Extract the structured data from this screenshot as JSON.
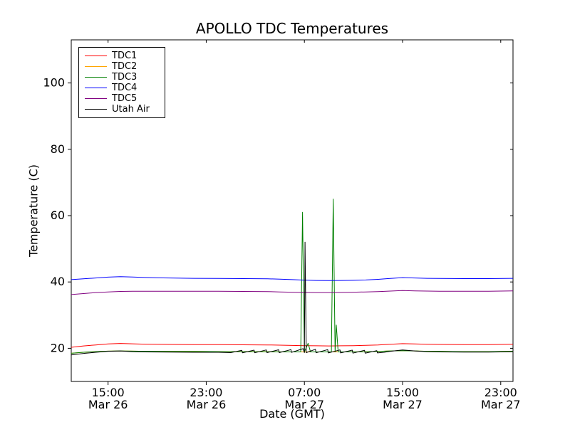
{
  "chart_data": {
    "type": "line",
    "title": "APOLLO TDC Temperatures",
    "xlabel": "Date (GMT)",
    "ylabel": "Temperature (C)",
    "x_unit": "hours since Mar 26 12:00 GMT",
    "xlim": [
      0,
      36
    ],
    "ylim": [
      10,
      113
    ],
    "yticks": [
      20,
      40,
      60,
      80,
      100
    ],
    "xticks": [
      {
        "x": 3,
        "time": "15:00",
        "date": "Mar 26"
      },
      {
        "x": 11,
        "time": "23:00",
        "date": "Mar 26"
      },
      {
        "x": 19,
        "time": "07:00",
        "date": "Mar 27"
      },
      {
        "x": 27,
        "time": "15:00",
        "date": "Mar 27"
      },
      {
        "x": 35,
        "time": "23:00",
        "date": "Mar 27"
      }
    ],
    "grid": false,
    "legend_position": "upper left",
    "axis_color": "#000000",
    "background_color": "#ffffff",
    "series": [
      {
        "name": "TDC1",
        "color": "#ff0000",
        "points": [
          [
            0,
            20.3
          ],
          [
            1,
            20.7
          ],
          [
            2,
            21.0
          ],
          [
            3,
            21.3
          ],
          [
            4,
            21.45
          ],
          [
            5,
            21.35
          ],
          [
            6,
            21.25
          ],
          [
            8,
            21.15
          ],
          [
            10,
            21.1
          ],
          [
            12,
            21.1
          ],
          [
            14,
            21.05
          ],
          [
            16,
            21.0
          ],
          [
            17,
            20.95
          ],
          [
            18,
            20.85
          ],
          [
            19,
            20.8
          ],
          [
            20,
            20.75
          ],
          [
            21,
            20.7
          ],
          [
            22,
            20.75
          ],
          [
            23,
            20.8
          ],
          [
            24,
            20.9
          ],
          [
            25,
            21.0
          ],
          [
            26,
            21.2
          ],
          [
            27,
            21.4
          ],
          [
            28,
            21.3
          ],
          [
            29,
            21.2
          ],
          [
            30,
            21.15
          ],
          [
            32,
            21.1
          ],
          [
            34,
            21.1
          ],
          [
            36,
            21.2
          ]
        ]
      },
      {
        "name": "TDC2",
        "color": "#ffa500",
        "points": [
          [
            0,
            18.5
          ],
          [
            1,
            18.8
          ],
          [
            2,
            19.0
          ],
          [
            3,
            19.15
          ],
          [
            4,
            19.2
          ],
          [
            5,
            19.15
          ],
          [
            6,
            19.1
          ],
          [
            8,
            19.05
          ],
          [
            10,
            19.05
          ],
          [
            12,
            19.0
          ],
          [
            14,
            19.0
          ],
          [
            16,
            18.95
          ],
          [
            18,
            18.9
          ],
          [
            20,
            18.9
          ],
          [
            22,
            18.9
          ],
          [
            24,
            18.95
          ],
          [
            25,
            19.05
          ],
          [
            26,
            19.2
          ],
          [
            27,
            19.3
          ],
          [
            28,
            19.2
          ],
          [
            29,
            19.1
          ],
          [
            30,
            19.05
          ],
          [
            32,
            19.0
          ],
          [
            34,
            19.0
          ],
          [
            36,
            19.1
          ]
        ]
      },
      {
        "name": "TDC3",
        "color": "#008000",
        "points": [
          [
            0,
            18.5
          ],
          [
            1,
            18.8
          ],
          [
            2,
            19.0
          ],
          [
            3,
            19.15
          ],
          [
            4,
            19.2
          ],
          [
            5,
            19.15
          ],
          [
            6,
            19.1
          ],
          [
            8,
            19.05
          ],
          [
            10,
            19.05
          ],
          [
            12,
            19.0
          ],
          [
            14,
            19.0
          ],
          [
            16,
            18.95
          ],
          [
            18,
            18.9
          ],
          [
            18.7,
            18.9
          ],
          [
            18.85,
            61.0
          ],
          [
            19.0,
            18.9
          ],
          [
            19.3,
            21.5
          ],
          [
            19.5,
            18.9
          ],
          [
            20,
            18.9
          ],
          [
            21.2,
            18.9
          ],
          [
            21.35,
            65.0
          ],
          [
            21.5,
            18.9
          ],
          [
            21.6,
            27.0
          ],
          [
            21.75,
            18.9
          ],
          [
            22,
            18.9
          ],
          [
            24,
            18.95
          ],
          [
            25,
            19.05
          ],
          [
            26,
            19.2
          ],
          [
            27,
            19.3
          ],
          [
            28,
            19.2
          ],
          [
            29,
            19.1
          ],
          [
            30,
            19.05
          ],
          [
            32,
            19.0
          ],
          [
            34,
            19.0
          ],
          [
            36,
            19.1
          ]
        ]
      },
      {
        "name": "TDC4",
        "color": "#0000ff",
        "points": [
          [
            0,
            40.7
          ],
          [
            1,
            40.95
          ],
          [
            2,
            41.2
          ],
          [
            3,
            41.45
          ],
          [
            4,
            41.6
          ],
          [
            5,
            41.5
          ],
          [
            6,
            41.35
          ],
          [
            7,
            41.25
          ],
          [
            8,
            41.2
          ],
          [
            10,
            41.1
          ],
          [
            12,
            41.05
          ],
          [
            14,
            41.0
          ],
          [
            16,
            40.95
          ],
          [
            17,
            40.85
          ],
          [
            18,
            40.7
          ],
          [
            19,
            40.55
          ],
          [
            20,
            40.45
          ],
          [
            21,
            40.4
          ],
          [
            22,
            40.45
          ],
          [
            23,
            40.5
          ],
          [
            24,
            40.6
          ],
          [
            25,
            40.8
          ],
          [
            26,
            41.05
          ],
          [
            27,
            41.3
          ],
          [
            28,
            41.2
          ],
          [
            29,
            41.1
          ],
          [
            30,
            41.05
          ],
          [
            32,
            41.0
          ],
          [
            34,
            41.0
          ],
          [
            36,
            41.1
          ]
        ]
      },
      {
        "name": "TDC5",
        "color": "#800080",
        "points": [
          [
            0,
            36.2
          ],
          [
            1,
            36.5
          ],
          [
            2,
            36.8
          ],
          [
            3,
            37.0
          ],
          [
            4,
            37.15
          ],
          [
            5,
            37.2
          ],
          [
            6,
            37.2
          ],
          [
            8,
            37.2
          ],
          [
            10,
            37.2
          ],
          [
            12,
            37.2
          ],
          [
            14,
            37.15
          ],
          [
            16,
            37.1
          ],
          [
            17,
            37.0
          ],
          [
            18,
            36.9
          ],
          [
            19,
            36.85
          ],
          [
            20,
            36.8
          ],
          [
            21,
            36.8
          ],
          [
            22,
            36.85
          ],
          [
            23,
            36.9
          ],
          [
            24,
            37.0
          ],
          [
            25,
            37.1
          ],
          [
            26,
            37.25
          ],
          [
            27,
            37.4
          ],
          [
            28,
            37.3
          ],
          [
            29,
            37.25
          ],
          [
            30,
            37.2
          ],
          [
            32,
            37.2
          ],
          [
            34,
            37.2
          ],
          [
            36,
            37.3
          ]
        ]
      },
      {
        "name": "Utah Air",
        "color": "#000000",
        "points": [
          [
            0,
            18.0
          ],
          [
            1,
            18.45
          ],
          [
            2,
            18.8
          ],
          [
            3,
            19.1
          ],
          [
            4,
            19.2
          ],
          [
            5,
            19.0
          ],
          [
            6,
            18.9
          ],
          [
            8,
            18.85
          ],
          [
            10,
            18.8
          ],
          [
            12,
            18.8
          ],
          [
            13,
            18.7
          ],
          [
            13.9,
            19.4
          ],
          [
            13.95,
            18.65
          ],
          [
            14.9,
            19.45
          ],
          [
            14.95,
            18.65
          ],
          [
            15.9,
            19.5
          ],
          [
            15.95,
            18.7
          ],
          [
            16.9,
            19.55
          ],
          [
            16.95,
            18.7
          ],
          [
            17.9,
            19.6
          ],
          [
            17.95,
            18.75
          ],
          [
            18.9,
            19.9
          ],
          [
            19.0,
            18.7
          ],
          [
            19.05,
            52.0
          ],
          [
            19.15,
            18.7
          ],
          [
            19.9,
            19.7
          ],
          [
            19.95,
            18.65
          ],
          [
            20.9,
            19.6
          ],
          [
            20.95,
            18.6
          ],
          [
            21.9,
            19.5
          ],
          [
            21.95,
            18.6
          ],
          [
            22.9,
            19.45
          ],
          [
            22.95,
            18.55
          ],
          [
            23.9,
            19.4
          ],
          [
            23.95,
            18.55
          ],
          [
            24.9,
            19.3
          ],
          [
            24.95,
            18.6
          ],
          [
            25.5,
            18.8
          ],
          [
            26,
            19.1
          ],
          [
            27,
            19.5
          ],
          [
            28,
            19.2
          ],
          [
            29,
            19.0
          ],
          [
            30,
            18.9
          ],
          [
            32,
            18.85
          ],
          [
            34,
            18.85
          ],
          [
            36,
            18.95
          ]
        ]
      }
    ]
  }
}
